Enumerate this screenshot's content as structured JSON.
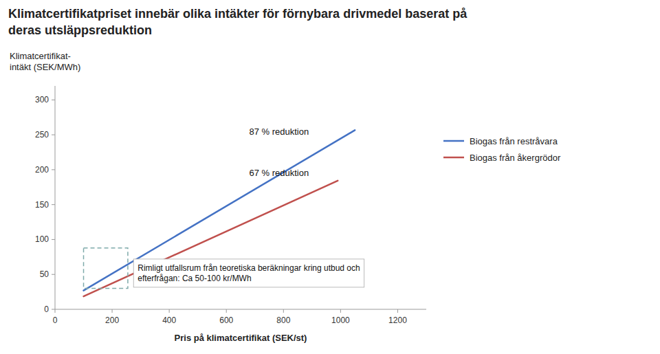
{
  "chart_data": {
    "type": "line",
    "title": [
      "Klimatcertifikatpriset innebär olika intäkter för förnybara drivmedel baserat på",
      "deras utsläppsreduktion"
    ],
    "xlabel": "Pris på klimatcertifikat (SEK/st)",
    "ylabel": "Klimatcertifikat-\nintäkt (SEK/MWh)",
    "xlim": [
      0,
      1300
    ],
    "ylim": [
      0,
      320
    ],
    "xticks": [
      0,
      200,
      400,
      600,
      800,
      1000,
      1200
    ],
    "yticks": [
      0,
      50,
      100,
      150,
      200,
      250,
      300
    ],
    "grid": false,
    "legend": "right",
    "series": [
      {
        "name": "Biogas från restråvara",
        "color": "#4472C4",
        "x": [
          100,
          1050
        ],
        "values": [
          27,
          256.615
        ]
      },
      {
        "name": "Biogas från åkergrödor",
        "color": "#C0504D",
        "x": [
          100,
          990
        ],
        "values": [
          18.61,
          184.239
        ]
      }
    ],
    "annotations": [
      {
        "text": "87 % reduktion",
        "x": 680,
        "y": 255
      },
      {
        "text": "67 % reduktion",
        "x": 680,
        "y": 195
      },
      {
        "text": "Rimligt utfallsrum från teoretiska beräkningar kring utbud och\nefterfrågan: Ca 50-100 kr/MWh",
        "x": 275,
        "y": 52
      }
    ],
    "range_box": {
      "x": 100,
      "y": 30,
      "width": 155,
      "height": 58,
      "color": "#7FAAAA"
    }
  }
}
